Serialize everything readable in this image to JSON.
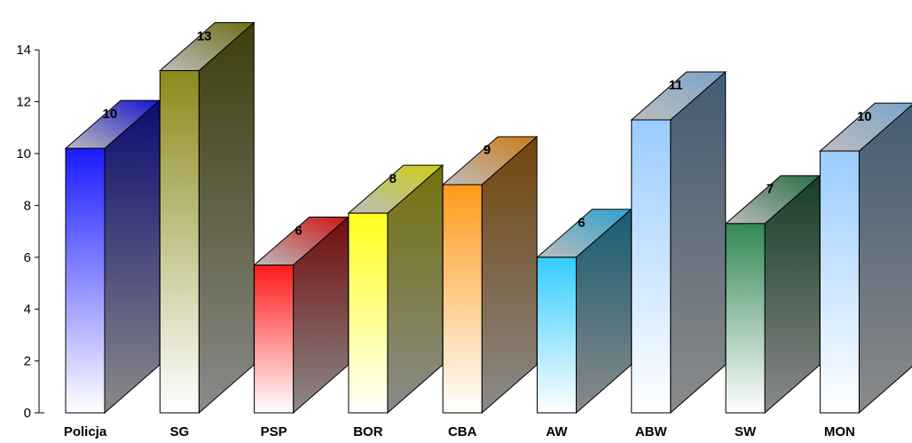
{
  "chart_data": {
    "type": "bar",
    "title": "",
    "xlabel": "",
    "ylabel": "",
    "ylim": [
      0,
      14
    ],
    "yticks": [
      0,
      2,
      4,
      6,
      8,
      10,
      12,
      14
    ],
    "ytick_labels": [
      "0",
      "2",
      "4",
      "6",
      "8",
      "10",
      "12",
      "14"
    ],
    "grid": false,
    "legend": "none",
    "categories": [
      "Policja",
      "SG",
      "PSP",
      "BOR",
      "CBA",
      "AW",
      "ABW",
      "SW",
      "MON"
    ],
    "values": [
      10.2,
      13.2,
      5.7,
      7.7,
      8.8,
      6.0,
      11.3,
      7.3,
      10.1
    ],
    "data_labels": [
      "10",
      "13",
      "6",
      "8",
      "9",
      "6",
      "11",
      "7",
      "10"
    ],
    "colors": [
      "#1a1aff",
      "#8a8a1a",
      "#ff1a1a",
      "#ffff1a",
      "#ff9a1a",
      "#33ccff",
      "#99ccff",
      "#338855",
      "#99ccff"
    ]
  }
}
